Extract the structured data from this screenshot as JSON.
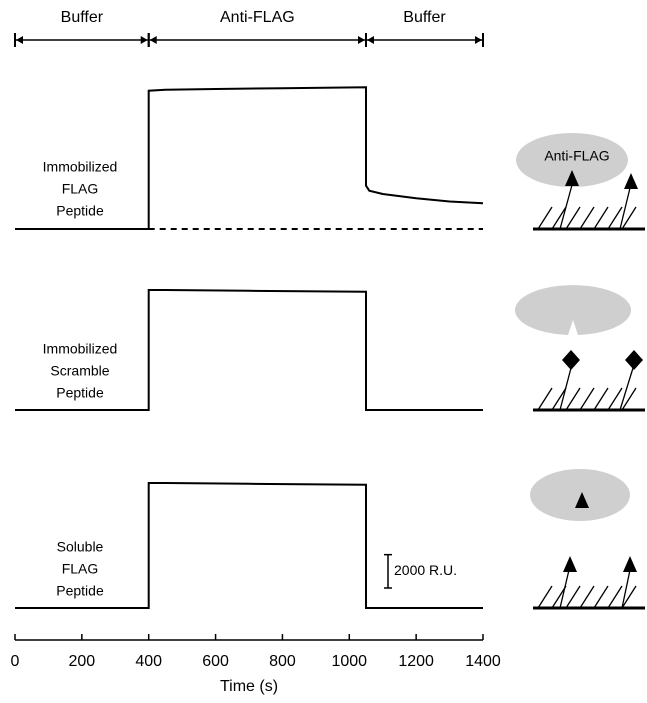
{
  "chart_data": {
    "type": "line",
    "xlabel": "Time (s)",
    "xlim": [
      0,
      1400
    ],
    "xticks": [
      0,
      200,
      400,
      600,
      800,
      1000,
      1200,
      1400
    ],
    "ylim": [
      -500,
      9000
    ],
    "phases": [
      {
        "label": "Buffer",
        "start": 0,
        "end": 400
      },
      {
        "label": "Anti-FLAG",
        "start": 400,
        "end": 1050
      },
      {
        "label": "Buffer",
        "start": 1050,
        "end": 1400
      }
    ],
    "scale_bar": {
      "value": 2000,
      "label": "2000 R.U."
    },
    "schematic_label": "Anti-FLAG",
    "panels": [
      {
        "label": [
          "Immobilized",
          "FLAG",
          "Peptide"
        ],
        "series": [
          {
            "color": "#000000",
            "dashed": false,
            "x": [
              0,
              400,
              400,
              450,
              600,
              800,
              1050,
              1050,
              1060,
              1100,
              1200,
              1300,
              1400
            ],
            "values": [
              0,
              0,
              8300,
              8350,
              8400,
              8450,
              8500,
              2600,
              2300,
              2100,
              1850,
              1650,
              1550
            ]
          },
          {
            "color": "#000000",
            "dashed": true,
            "x": [
              400,
              1400
            ],
            "values": [
              0,
              0
            ]
          }
        ]
      },
      {
        "label": [
          "Immobilized",
          "Scramble",
          "Peptide"
        ],
        "series": [
          {
            "color": "#000000",
            "dashed": false,
            "x": [
              0,
              400,
              400,
              450,
              700,
              1050,
              1050,
              1400
            ],
            "values": [
              0,
              0,
              7200,
              7200,
              7150,
              7100,
              0,
              0
            ]
          }
        ]
      },
      {
        "label": [
          "Soluble",
          "FLAG",
          "Peptide"
        ],
        "series": [
          {
            "color": "#000000",
            "dashed": false,
            "x": [
              0,
              400,
              400,
              450,
              700,
              1050,
              1050,
              1400
            ],
            "values": [
              0,
              0,
              7500,
              7500,
              7450,
              7400,
              0,
              0
            ]
          }
        ]
      }
    ]
  }
}
